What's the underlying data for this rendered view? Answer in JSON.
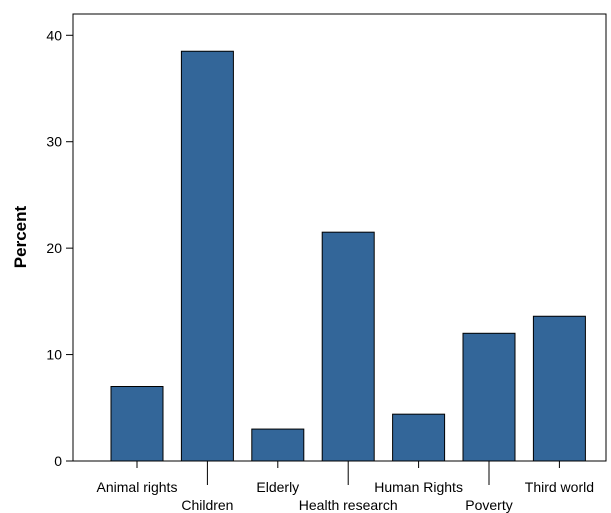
{
  "chart_data": {
    "type": "bar",
    "title": "",
    "xlabel": "",
    "ylabel": "Percent",
    "ylim": [
      0,
      42
    ],
    "yticks": [
      0,
      10,
      20,
      30,
      40
    ],
    "grid": false,
    "bar_color": "#336699",
    "categories": [
      "Animal rights",
      "Children",
      "Elderly",
      "Health research",
      "Human Rights",
      "Poverty",
      "Third world"
    ],
    "values": [
      7.0,
      38.5,
      3.0,
      21.5,
      4.4,
      12.0,
      13.6
    ]
  }
}
